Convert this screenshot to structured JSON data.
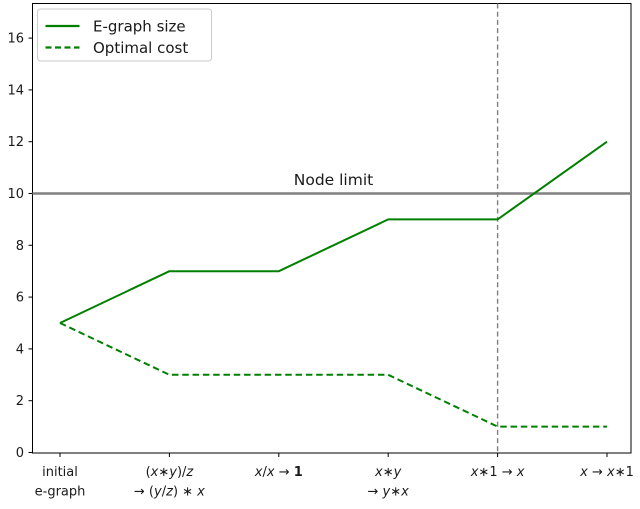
{
  "chart_data": {
    "type": "line",
    "title": "",
    "x_axis": {
      "categories": [
        {
          "label": "initial e-graph",
          "lines": [
            [
              {
                "t": "initial"
              }
            ],
            [
              {
                "t": "e-graph"
              }
            ]
          ]
        },
        {
          "label": "(x∗y)/z → (y/z)∗x",
          "lines": [
            [
              {
                "t": "("
              },
              {
                "t": "x",
                "i": 1
              },
              {
                "t": "∗"
              },
              {
                "t": "y",
                "i": 1
              },
              {
                "t": ")/"
              },
              {
                "t": "z",
                "i": 1
              }
            ],
            [
              {
                "t": "→ ("
              },
              {
                "t": "y",
                "i": 1
              },
              {
                "t": "/"
              },
              {
                "t": "z",
                "i": 1
              },
              {
                "t": ") ∗ "
              },
              {
                "t": "x",
                "i": 1
              }
            ]
          ]
        },
        {
          "label": "x/x → 1",
          "lines": [
            [
              {
                "t": "x",
                "i": 1
              },
              {
                "t": "/"
              },
              {
                "t": "x",
                "i": 1
              },
              {
                "t": " → "
              },
              {
                "t": "1",
                "b": 1
              }
            ]
          ]
        },
        {
          "label": "x∗y → y∗x",
          "lines": [
            [
              {
                "t": "x",
                "i": 1
              },
              {
                "t": "∗"
              },
              {
                "t": "y",
                "i": 1
              }
            ],
            [
              {
                "t": "→ "
              },
              {
                "t": "y",
                "i": 1
              },
              {
                "t": "∗"
              },
              {
                "t": "x",
                "i": 1
              }
            ]
          ]
        },
        {
          "label": "x∗1 → x",
          "lines": [
            [
              {
                "t": "x",
                "i": 1
              },
              {
                "t": "∗1 → "
              },
              {
                "t": "x",
                "i": 1
              }
            ]
          ]
        },
        {
          "label": "x → x∗1",
          "lines": [
            [
              {
                "t": "x",
                "i": 1
              },
              {
                "t": " → "
              },
              {
                "t": "x",
                "i": 1
              },
              {
                "t": "∗1"
              }
            ]
          ]
        }
      ]
    },
    "y_axis": {
      "ticks": [
        0,
        2,
        4,
        6,
        8,
        10,
        12,
        14,
        16
      ],
      "lim": [
        0,
        17.3
      ]
    },
    "series": [
      {
        "name": "E-graph size",
        "values": [
          5,
          7,
          7,
          9,
          9,
          12
        ],
        "style": "solid",
        "color": "#008000"
      },
      {
        "name": "Optimal cost",
        "values": [
          5,
          3,
          3,
          3,
          1,
          1
        ],
        "style": "dashed",
        "color": "#008000"
      }
    ],
    "annotations": {
      "node_limit": {
        "label": "Node limit",
        "y": 10,
        "style": "solid",
        "color": "#808080"
      },
      "saturation_vline": {
        "x_index": 4,
        "style": "dashed",
        "color": "#808080"
      }
    },
    "legend": {
      "position": "upper-left"
    },
    "grid": false,
    "colors": {
      "background": "#ffffff",
      "text": "#1a1a1a",
      "spine": "#000000",
      "legend_border": "#cccccc",
      "legend_fill": "#ffffff"
    }
  }
}
